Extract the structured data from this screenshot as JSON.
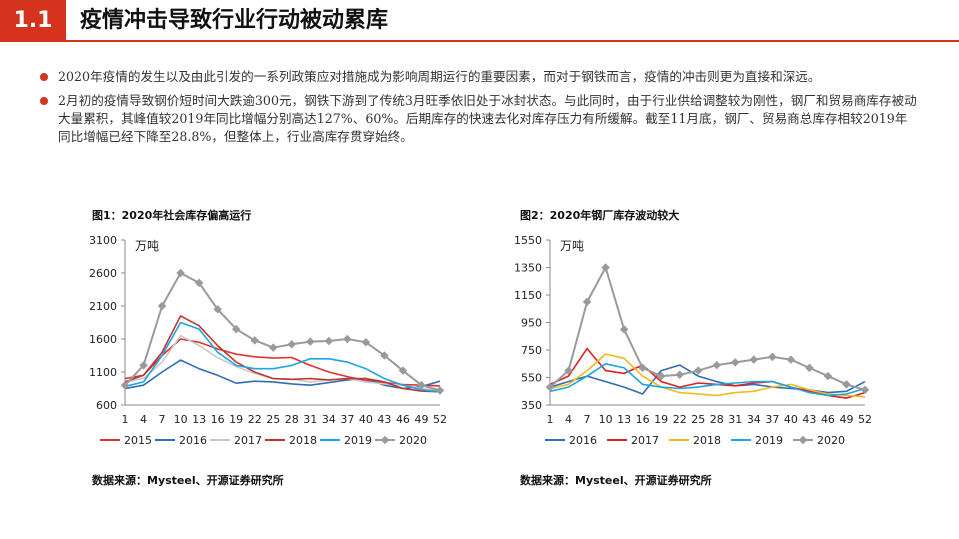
{
  "header": {
    "section": "1.1",
    "title": "疫情冲击导致行业行动被动累库"
  },
  "bullets": [
    "2020年疫情的发生以及由此引发的一系列政策应对措施成为影响周期运行的重要因素，而对于钢铁而言，疫情的冲击则更为直接和深远。",
    "2月初的疫情导致钢价短时间大跌逾300元，钢铁下游到了传统3月旺季依旧处于冰封状态。与此同时，由于行业供给调整较为刚性，钢厂和贸易商库存被动大量累积，其峰值较2019年同比增幅分别高达127%、60%。后期库存的快速去化对库存压力有所缓解。截至11月底，钢厂、贸易商总库存相较2019年同比增幅已经下降至28.8%，但整体上，行业高库存贯穿始终。"
  ],
  "figures": [
    {
      "title": "图1：2020年社会库存偏高运行",
      "source": "数据来源：Mysteel、开源证券研究所"
    },
    {
      "title": "图2：2020年钢厂库存波动较大",
      "source": "数据来源：Mysteel、开源证券研究所"
    }
  ],
  "chart_data": [
    {
      "type": "line",
      "unit_label": "万吨",
      "ylim": [
        600,
        3100
      ],
      "yticks": [
        "600",
        "1100",
        "1600",
        "2100",
        "2600",
        "3100"
      ],
      "xticks": [
        "1",
        "4",
        "7",
        "10",
        "13",
        "16",
        "19",
        "22",
        "25",
        "28",
        "31",
        "34",
        "37",
        "40",
        "43",
        "46",
        "49",
        "52"
      ],
      "legend_placement": "bottom",
      "series": [
        {
          "name": "2015",
          "color": "#e03232",
          "width": 1.6,
          "marker": false,
          "x": [
            1,
            4,
            7,
            10,
            13,
            16,
            19,
            22,
            25,
            28,
            31,
            34,
            37,
            40,
            43,
            46,
            49,
            52
          ],
          "values": [
            1000,
            1050,
            1350,
            1600,
            1550,
            1450,
            1370,
            1330,
            1310,
            1320,
            1200,
            1100,
            1030,
            970,
            940,
            910,
            900,
            890
          ]
        },
        {
          "name": "2016",
          "color": "#2f6db5",
          "width": 1.6,
          "marker": false,
          "x": [
            1,
            4,
            7,
            10,
            13,
            16,
            19,
            22,
            25,
            28,
            31,
            34,
            37,
            40,
            43,
            46,
            49,
            52
          ],
          "values": [
            850,
            900,
            1100,
            1280,
            1150,
            1050,
            930,
            960,
            950,
            920,
            900,
            940,
            980,
            1000,
            900,
            850,
            880,
            960
          ]
        },
        {
          "name": "2017",
          "color": "#c8c8c8",
          "width": 1.6,
          "marker": false,
          "x": [
            1,
            4,
            7,
            10,
            13,
            16,
            19,
            22,
            25,
            28,
            31,
            34,
            37,
            40,
            43,
            46,
            49,
            52
          ],
          "values": [
            950,
            1000,
            1250,
            1650,
            1500,
            1320,
            1180,
            1080,
            1000,
            990,
            950,
            980,
            1000,
            950,
            920,
            900,
            850,
            820
          ]
        },
        {
          "name": "2018",
          "color": "#c0362c",
          "width": 1.6,
          "marker": false,
          "x": [
            1,
            4,
            7,
            10,
            13,
            16,
            19,
            22,
            25,
            28,
            31,
            34,
            37,
            40,
            43,
            46,
            49,
            52
          ],
          "values": [
            950,
            1050,
            1400,
            1950,
            1800,
            1500,
            1250,
            1100,
            1000,
            990,
            1000,
            980,
            1000,
            1000,
            950,
            850,
            810,
            800
          ]
        },
        {
          "name": "2019",
          "color": "#1aa6e0",
          "width": 1.6,
          "marker": false,
          "x": [
            1,
            4,
            7,
            10,
            13,
            16,
            19,
            22,
            25,
            28,
            31,
            34,
            37,
            40,
            43,
            46,
            49,
            52
          ],
          "values": [
            880,
            950,
            1350,
            1850,
            1750,
            1400,
            1200,
            1150,
            1150,
            1200,
            1300,
            1300,
            1250,
            1150,
            1000,
            900,
            830,
            800
          ]
        },
        {
          "name": "2020",
          "color": "#9a9a9a",
          "width": 2.0,
          "marker": true,
          "x": [
            1,
            4,
            7,
            10,
            13,
            16,
            19,
            22,
            25,
            28,
            31,
            34,
            37,
            40,
            43,
            46,
            49,
            52
          ],
          "values": [
            900,
            1200,
            2100,
            2600,
            2450,
            2050,
            1750,
            1580,
            1470,
            1520,
            1560,
            1570,
            1600,
            1550,
            1350,
            1120,
            900,
            820
          ]
        }
      ]
    },
    {
      "type": "line",
      "unit_label": "万吨",
      "ylim": [
        350,
        1550
      ],
      "yticks": [
        "350",
        "550",
        "750",
        "950",
        "1150",
        "1350",
        "1550"
      ],
      "xticks": [
        "1",
        "4",
        "7",
        "10",
        "13",
        "16",
        "19",
        "22",
        "25",
        "28",
        "31",
        "34",
        "37",
        "40",
        "43",
        "46",
        "49",
        "52"
      ],
      "legend_placement": "bottom",
      "series": [
        {
          "name": "2016",
          "color": "#2f6db5",
          "width": 1.6,
          "marker": false,
          "x": [
            1,
            4,
            7,
            10,
            13,
            16,
            19,
            22,
            25,
            28,
            31,
            34,
            37,
            40,
            43,
            46,
            49,
            52
          ],
          "values": [
            480,
            520,
            560,
            520,
            480,
            430,
            600,
            640,
            560,
            520,
            490,
            500,
            480,
            470,
            460,
            440,
            450,
            520
          ]
        },
        {
          "name": "2017",
          "color": "#e02020",
          "width": 1.6,
          "marker": false,
          "x": [
            1,
            4,
            7,
            10,
            13,
            16,
            19,
            22,
            25,
            28,
            31,
            34,
            37,
            40,
            43,
            46,
            49,
            52
          ],
          "values": [
            500,
            560,
            760,
            600,
            580,
            640,
            520,
            480,
            510,
            500,
            490,
            510,
            520,
            480,
            450,
            420,
            400,
            440
          ]
        },
        {
          "name": "2018",
          "color": "#f5b81c",
          "width": 1.6,
          "marker": false,
          "x": [
            1,
            4,
            7,
            10,
            13,
            16,
            19,
            22,
            25,
            28,
            31,
            34,
            37,
            40,
            43,
            46,
            49,
            52
          ],
          "values": [
            470,
            500,
            600,
            720,
            690,
            560,
            480,
            440,
            430,
            420,
            440,
            450,
            480,
            500,
            460,
            430,
            420,
            410
          ]
        },
        {
          "name": "2019",
          "color": "#1aa6e0",
          "width": 1.6,
          "marker": false,
          "x": [
            1,
            4,
            7,
            10,
            13,
            16,
            19,
            22,
            25,
            28,
            31,
            34,
            37,
            40,
            43,
            46,
            49,
            52
          ],
          "values": [
            450,
            480,
            560,
            650,
            620,
            500,
            480,
            470,
            480,
            500,
            510,
            520,
            520,
            480,
            440,
            420,
            430,
            470
          ]
        },
        {
          "name": "2020",
          "color": "#9a9a9a",
          "width": 2.0,
          "marker": true,
          "x": [
            1,
            4,
            7,
            10,
            13,
            16,
            19,
            22,
            25,
            28,
            31,
            34,
            37,
            40,
            43,
            46,
            49,
            52
          ],
          "values": [
            480,
            600,
            1100,
            1350,
            900,
            620,
            560,
            570,
            600,
            640,
            660,
            680,
            700,
            680,
            620,
            560,
            500,
            460
          ]
        }
      ]
    }
  ]
}
